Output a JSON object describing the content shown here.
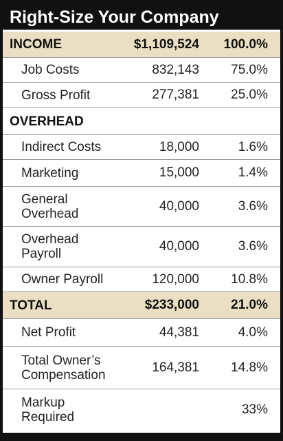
{
  "title": "Right-Size Your Company",
  "rows": [
    {
      "kind": "total",
      "label": "INCOME",
      "amount": "$1,109,524",
      "percent": "100.0%"
    },
    {
      "kind": "item",
      "label": "Job Costs",
      "amount": "832,143",
      "percent": "75.0%"
    },
    {
      "kind": "item",
      "label": "Gross Profit",
      "amount": "277,381",
      "percent": "25.0%"
    },
    {
      "kind": "section",
      "label": "OVERHEAD"
    },
    {
      "kind": "item",
      "label": "Indirect Costs",
      "amount": "18,000",
      "percent": "1.6%"
    },
    {
      "kind": "item",
      "label": "Marketing",
      "amount": "15,000",
      "percent": "1.4%"
    },
    {
      "kind": "item",
      "label": "General Overhead",
      "amount": "40,000",
      "percent": "3.6%"
    },
    {
      "kind": "item",
      "label": "Overhead Payroll",
      "amount": "40,000",
      "percent": "3.6%"
    },
    {
      "kind": "item",
      "label": "Owner Payroll",
      "amount": "120,000",
      "percent": "10.8%"
    },
    {
      "kind": "total",
      "label": "TOTAL",
      "amount": "$233,000",
      "percent": "21.0%"
    },
    {
      "kind": "item",
      "label": "Net Profit",
      "amount": "44,381",
      "percent": "4.0%"
    },
    {
      "kind": "item",
      "label": "Total Owner’s Compensation",
      "amount": "164,381",
      "percent": "14.8%"
    },
    {
      "kind": "item",
      "label": "Markup Required",
      "percent": "33%"
    }
  ]
}
